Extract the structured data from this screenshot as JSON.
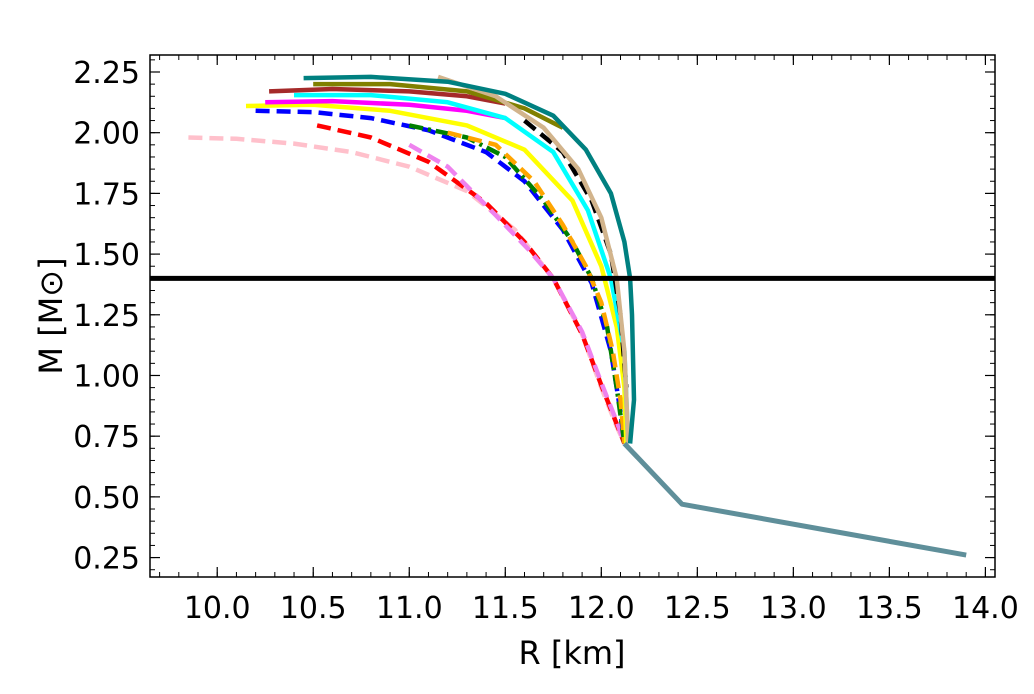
{
  "chart_data": {
    "type": "line",
    "title": "",
    "xlabel": "R [km]",
    "ylabel": "M [M⊙]",
    "xlim": [
      9.65,
      14.05
    ],
    "ylim": [
      0.17,
      2.32
    ],
    "x_ticks": [
      10.0,
      10.5,
      11.0,
      11.5,
      12.0,
      12.5,
      13.0,
      13.5,
      14.0
    ],
    "x_tick_labels": [
      "10.0",
      "10.5",
      "11.0",
      "11.5",
      "12.0",
      "12.5",
      "13.0",
      "13.5",
      "14.0"
    ],
    "y_ticks": [
      0.25,
      0.5,
      0.75,
      1.0,
      1.25,
      1.5,
      1.75,
      2.0,
      2.25
    ],
    "y_tick_labels": [
      "0.25",
      "0.50",
      "0.75",
      "1.00",
      "1.25",
      "1.50",
      "1.75",
      "2.00",
      "2.25"
    ],
    "hline": {
      "y": 1.4,
      "color": "#000000"
    },
    "shared_tail": {
      "color": "#5f8f9a",
      "x": [
        12.12,
        12.42,
        13.9
      ],
      "y": [
        0.72,
        0.47,
        0.26
      ]
    },
    "series": [
      {
        "name": "pink",
        "color": "#ffc0cb",
        "style": "dashed",
        "x": [
          9.85,
          10.1,
          10.4,
          10.7,
          11.0,
          11.3,
          11.55,
          11.75,
          11.9,
          12.0,
          12.08,
          12.12
        ],
        "y": [
          1.98,
          1.975,
          1.955,
          1.92,
          1.86,
          1.76,
          1.6,
          1.4,
          1.17,
          0.95,
          0.79,
          0.72
        ]
      },
      {
        "name": "red",
        "color": "#ff0000",
        "style": "dashed",
        "x": [
          10.52,
          10.8,
          11.1,
          11.4,
          11.6,
          11.75,
          11.9,
          12.0,
          12.08,
          12.12
        ],
        "y": [
          2.03,
          1.98,
          1.88,
          1.71,
          1.55,
          1.4,
          1.17,
          0.96,
          0.8,
          0.72
        ]
      },
      {
        "name": "violet",
        "color": "#ee82ee",
        "style": "dashed",
        "x": [
          11.0,
          11.2,
          11.45,
          11.62,
          11.75,
          11.9,
          12.0,
          12.08,
          12.12
        ],
        "y": [
          1.95,
          1.86,
          1.66,
          1.52,
          1.4,
          1.18,
          0.97,
          0.81,
          0.72
        ]
      },
      {
        "name": "blue",
        "color": "#0000ff",
        "style": "dashed",
        "x": [
          10.2,
          10.5,
          10.8,
          11.1,
          11.4,
          11.6,
          11.8,
          11.95,
          12.05,
          12.1,
          12.12
        ],
        "y": [
          2.09,
          2.085,
          2.06,
          2.01,
          1.92,
          1.8,
          1.6,
          1.38,
          1.1,
          0.85,
          0.72
        ]
      },
      {
        "name": "green",
        "color": "#007f00",
        "style": "dashdot",
        "x": [
          11.0,
          11.3,
          11.5,
          11.7,
          11.85,
          11.95,
          12.03,
          12.08,
          12.12
        ],
        "y": [
          2.03,
          1.98,
          1.9,
          1.72,
          1.55,
          1.4,
          1.2,
          0.95,
          0.72
        ]
      },
      {
        "name": "orange",
        "color": "#ffa500",
        "style": "dashed",
        "x": [
          11.2,
          11.45,
          11.65,
          11.8,
          11.92,
          12.0,
          12.06,
          12.1,
          12.12
        ],
        "y": [
          2.0,
          1.95,
          1.8,
          1.62,
          1.45,
          1.3,
          1.1,
          0.9,
          0.72
        ]
      },
      {
        "name": "yellow",
        "color": "#ffff00",
        "style": "solid",
        "x": [
          10.15,
          10.5,
          10.9,
          11.3,
          11.6,
          11.85,
          12.0,
          12.08,
          12.12,
          12.13
        ],
        "y": [
          2.11,
          2.115,
          2.09,
          2.03,
          1.93,
          1.72,
          1.45,
          1.2,
          0.95,
          0.72
        ]
      },
      {
        "name": "magenta",
        "color": "#ff00ff",
        "style": "solid",
        "x": [
          10.25,
          10.6,
          11.0,
          11.3,
          11.5
        ],
        "y": [
          2.125,
          2.13,
          2.115,
          2.09,
          2.06
        ]
      },
      {
        "name": "cyan",
        "color": "#00ffff",
        "style": "solid",
        "x": [
          10.4,
          10.8,
          11.2,
          11.5,
          11.75,
          11.93,
          12.05,
          12.12,
          12.14
        ],
        "y": [
          2.155,
          2.155,
          2.125,
          2.06,
          1.92,
          1.68,
          1.4,
          1.1,
          0.72
        ]
      },
      {
        "name": "black-dashed",
        "color": "#000000",
        "style": "dashed",
        "x": [
          11.6,
          11.8,
          11.95,
          12.05,
          12.1,
          12.13
        ],
        "y": [
          2.05,
          1.92,
          1.72,
          1.5,
          1.25,
          0.95
        ]
      },
      {
        "name": "brown",
        "color": "#a52a2a",
        "style": "solid",
        "x": [
          10.27,
          10.6,
          11.0,
          11.3,
          11.5
        ],
        "y": [
          2.17,
          2.18,
          2.17,
          2.15,
          2.12
        ]
      },
      {
        "name": "olive",
        "color": "#808000",
        "style": "solid",
        "x": [
          10.5,
          10.9,
          11.3,
          11.6,
          11.8
        ],
        "y": [
          2.2,
          2.2,
          2.17,
          2.1,
          2.02
        ]
      },
      {
        "name": "tan",
        "color": "#d2b48c",
        "style": "solid",
        "x": [
          11.15,
          11.45,
          11.7,
          11.88,
          12.0,
          12.08,
          12.12,
          12.14
        ],
        "y": [
          2.23,
          2.15,
          2.02,
          1.85,
          1.65,
          1.4,
          1.1,
          0.72
        ]
      },
      {
        "name": "teal",
        "color": "#008080",
        "style": "solid",
        "x": [
          10.45,
          10.8,
          11.2,
          11.5,
          11.75,
          11.92,
          12.05,
          12.12,
          12.15,
          12.16,
          12.17,
          12.15
        ],
        "y": [
          2.225,
          2.23,
          2.21,
          2.16,
          2.07,
          1.93,
          1.75,
          1.55,
          1.4,
          1.25,
          0.9,
          0.72
        ]
      }
    ]
  }
}
